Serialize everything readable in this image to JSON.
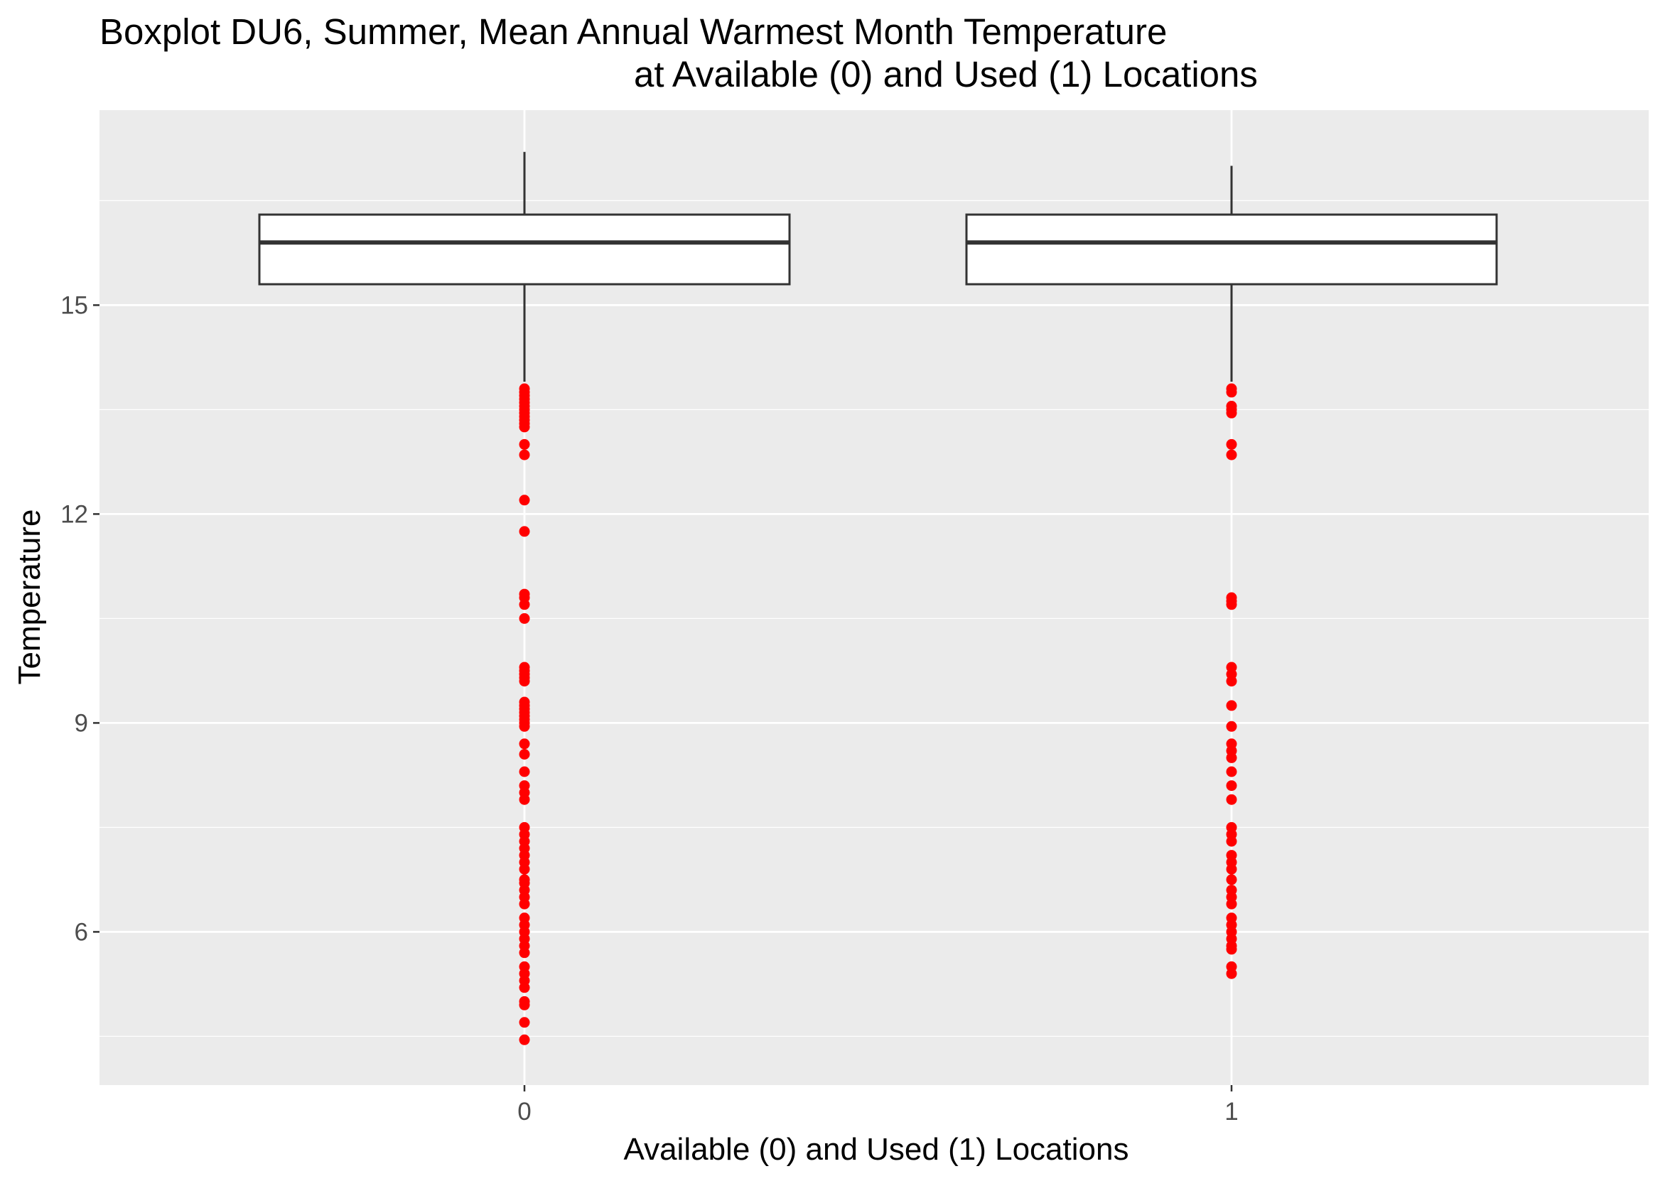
{
  "chart_data": {
    "type": "boxplot",
    "title_line1": "Boxplot DU6, Summer, Mean Annual Warmest Month Temperature",
    "title_line2": "at Available (0) and Used (1) Locations",
    "xlabel": "Available (0) and Used (1) Locations",
    "ylabel": "Temperature",
    "categories": [
      "0",
      "1"
    ],
    "ylim": [
      3.8,
      17.8
    ],
    "yticks": [
      6,
      9,
      12,
      15
    ],
    "y_tick_labels": [
      "6",
      "9",
      "12",
      "15"
    ],
    "grid": true,
    "colors": {
      "panel_background": "#ebebeb",
      "grid": "#ffffff",
      "box_line": "#333333",
      "box_fill": "#ffffff",
      "outlier": "#ff0000"
    },
    "boxes": [
      {
        "category": "0",
        "whisker_low": 13.9,
        "q1": 15.3,
        "median": 15.9,
        "q3": 16.3,
        "whisker_high": 17.2,
        "outliers": [
          13.8,
          13.75,
          13.7,
          13.65,
          13.6,
          13.55,
          13.5,
          13.45,
          13.4,
          13.35,
          13.3,
          13.25,
          13.0,
          12.85,
          12.2,
          11.75,
          10.85,
          10.8,
          10.7,
          10.5,
          9.8,
          9.75,
          9.7,
          9.65,
          9.6,
          9.3,
          9.25,
          9.2,
          9.15,
          9.1,
          9.05,
          9.0,
          8.95,
          8.7,
          8.55,
          8.3,
          8.1,
          8.0,
          7.9,
          7.5,
          7.4,
          7.3,
          7.2,
          7.1,
          7.0,
          6.9,
          6.75,
          6.7,
          6.6,
          6.5,
          6.4,
          6.2,
          6.1,
          6.0,
          5.9,
          5.8,
          5.7,
          5.5,
          5.4,
          5.3,
          5.2,
          5.0,
          4.95,
          4.7,
          4.45
        ]
      },
      {
        "category": "1",
        "whisker_low": 13.9,
        "q1": 15.3,
        "median": 15.9,
        "q3": 16.3,
        "whisker_high": 17.0,
        "outliers": [
          13.8,
          13.75,
          13.55,
          13.5,
          13.45,
          13.0,
          12.85,
          10.8,
          10.75,
          10.7,
          9.8,
          9.7,
          9.6,
          9.25,
          8.95,
          8.7,
          8.6,
          8.5,
          8.3,
          8.1,
          7.9,
          7.5,
          7.4,
          7.3,
          7.1,
          7.0,
          6.9,
          6.75,
          6.6,
          6.5,
          6.4,
          6.2,
          6.1,
          6.0,
          5.9,
          5.8,
          5.75,
          5.5,
          5.4
        ]
      }
    ]
  }
}
